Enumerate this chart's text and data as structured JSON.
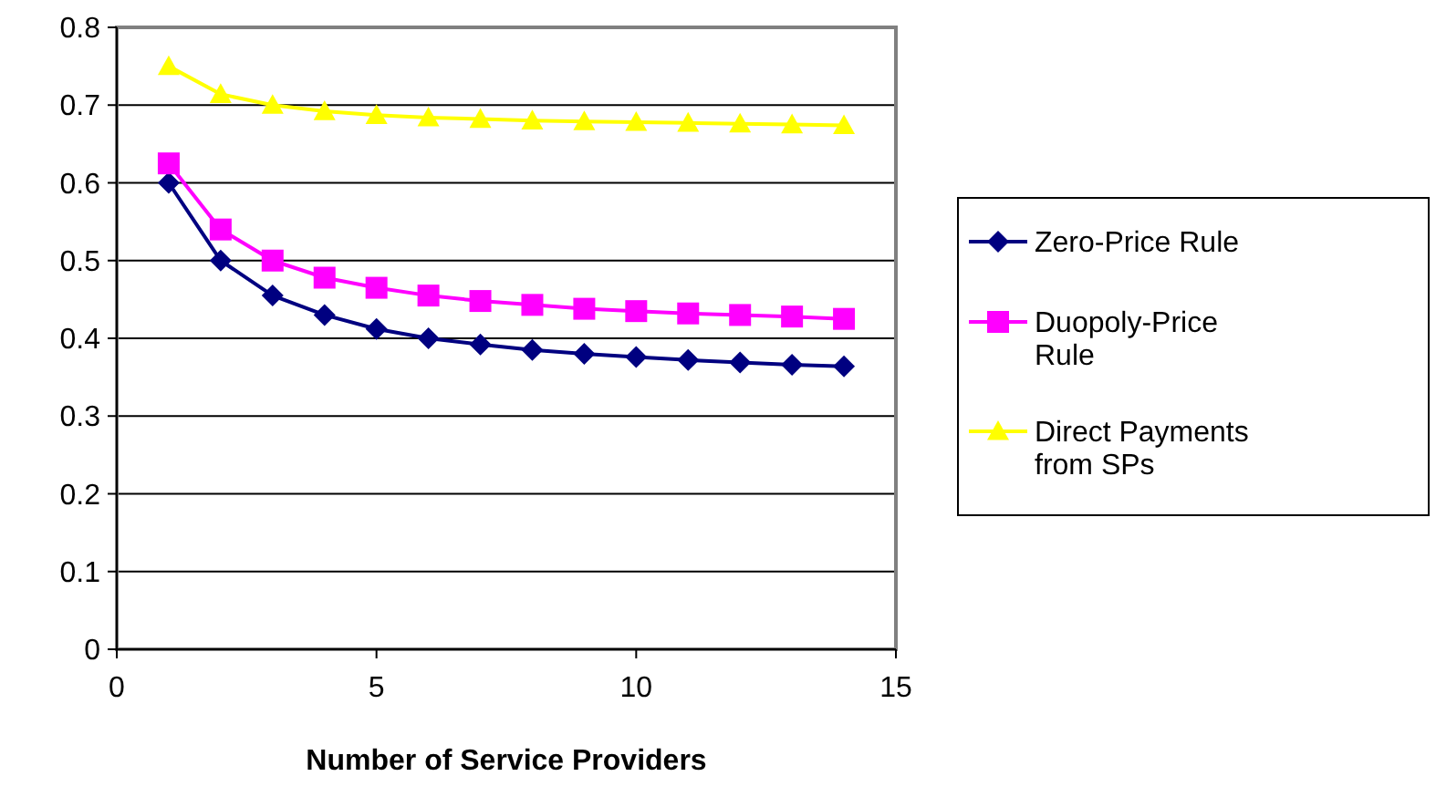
{
  "chart_data": {
    "type": "line",
    "xlabel": "Number of Service Providers",
    "x": [
      1,
      2,
      3,
      4,
      5,
      6,
      7,
      8,
      9,
      10,
      11,
      12,
      13,
      14
    ],
    "series": [
      {
        "name": "Zero-Price Rule",
        "color": "#000080",
        "marker": "diamond",
        "values": [
          0.6,
          0.5,
          0.455,
          0.43,
          0.412,
          0.4,
          0.392,
          0.385,
          0.38,
          0.376,
          0.372,
          0.369,
          0.366,
          0.364
        ]
      },
      {
        "name": "Duopoly-Price Rule",
        "color": "#ff00ff",
        "marker": "square",
        "values": [
          0.625,
          0.54,
          0.5,
          0.478,
          0.465,
          0.455,
          0.448,
          0.443,
          0.438,
          0.435,
          0.432,
          0.43,
          0.428,
          0.425
        ]
      },
      {
        "name": "Direct Payments from SPs",
        "color": "#ffff00",
        "marker": "triangle",
        "values": [
          0.75,
          0.714,
          0.7,
          0.692,
          0.687,
          0.684,
          0.682,
          0.68,
          0.679,
          0.678,
          0.677,
          0.676,
          0.675,
          0.674
        ]
      }
    ],
    "xlim": [
      0,
      15
    ],
    "xticks": [
      0,
      5,
      10,
      15
    ],
    "ylim": [
      0,
      0.8
    ],
    "yticks": [
      0,
      0.1,
      0.2,
      0.3,
      0.4,
      0.5,
      0.6,
      0.7,
      0.8
    ],
    "grid": "y",
    "legend": "right"
  }
}
